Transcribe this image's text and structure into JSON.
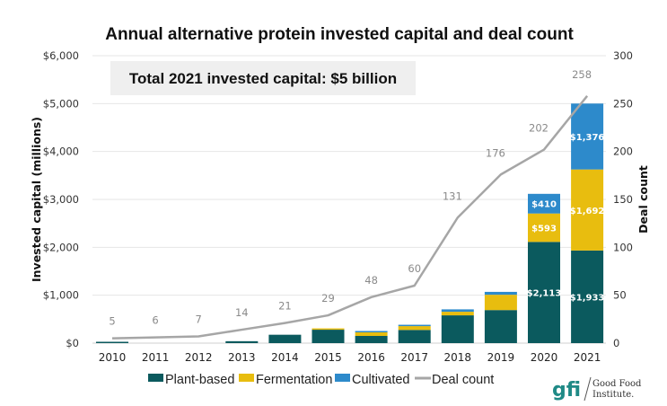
{
  "chart_data": {
    "type": "bar",
    "subtype": "stacked-bar-with-line",
    "title": "Annual alternative protein invested capital and deal count",
    "callout": "Total 2021 invested capital: $5 billion",
    "ylabel": "Invested capital (millions)",
    "y2label": "Deal count",
    "ylim": [
      0,
      6000
    ],
    "y2lim": [
      0,
      300
    ],
    "yticks": [
      "$0",
      "$1,000",
      "$2,000",
      "$3,000",
      "$4,000",
      "$5,000",
      "$6,000"
    ],
    "ytick_values": [
      0,
      1000,
      2000,
      3000,
      4000,
      5000,
      6000
    ],
    "y2ticks": [
      "0",
      "50",
      "100",
      "150",
      "200",
      "250",
      "300"
    ],
    "y2tick_values": [
      0,
      50,
      100,
      150,
      200,
      250,
      300
    ],
    "grid": true,
    "categories": [
      "2010",
      "2011",
      "2012",
      "2013",
      "2014",
      "2015",
      "2016",
      "2017",
      "2018",
      "2019",
      "2020",
      "2021"
    ],
    "series": [
      {
        "name": "Plant-based",
        "color": "#0b5a5e",
        "values": [
          15,
          0,
          0,
          40,
          175,
          280,
          150,
          275,
          580,
          690,
          2113,
          1933
        ]
      },
      {
        "name": "Fermentation",
        "color": "#e8bd0f",
        "values": [
          0,
          0,
          0,
          0,
          0,
          15,
          75,
          80,
          75,
          320,
          593,
          1692
        ]
      },
      {
        "name": "Cultivated",
        "color": "#2d8acb",
        "values": [
          0,
          0,
          0,
          0,
          0,
          0,
          10,
          25,
          50,
          60,
          410,
          1376
        ]
      }
    ],
    "segment_labels": [
      {
        "category": "2020",
        "series": "Plant-based",
        "text": "$2,113"
      },
      {
        "category": "2020",
        "series": "Fermentation",
        "text": "$593"
      },
      {
        "category": "2020",
        "series": "Cultivated",
        "text": "$410"
      },
      {
        "category": "2021",
        "series": "Plant-based",
        "text": "$1,933"
      },
      {
        "category": "2021",
        "series": "Fermentation",
        "text": "$1,692"
      },
      {
        "category": "2021",
        "series": "Cultivated",
        "text": "$1,376"
      }
    ],
    "line": {
      "name": "Deal count",
      "axis": "right",
      "color": "#a6a6a6",
      "values": [
        5,
        6,
        7,
        14,
        21,
        29,
        48,
        60,
        131,
        176,
        202,
        258
      ],
      "labels": [
        "5",
        "6",
        "7",
        "14",
        "21",
        "29",
        "48",
        "60",
        "131",
        "176",
        "202",
        "258"
      ]
    },
    "legend": {
      "placement": "bottom",
      "items": [
        "Plant-based",
        "Fermentation",
        "Cultivated",
        "Deal count"
      ]
    }
  },
  "logo": {
    "mark": "gfi",
    "name_line1": "Good Food",
    "name_line2": "Institute."
  }
}
